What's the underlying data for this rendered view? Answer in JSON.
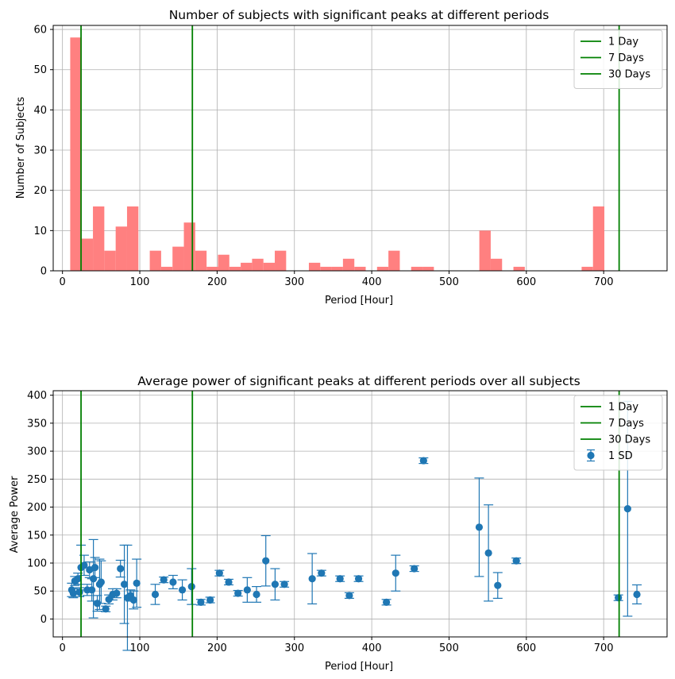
{
  "chart_data": [
    {
      "type": "bar",
      "title": "Number of subjects with significant peaks at different periods",
      "xlabel": "Period [Hour]",
      "ylabel": "Number of Subjects",
      "xlim": [
        -12,
        782
      ],
      "ylim": [
        0,
        61
      ],
      "xticks": [
        0,
        100,
        200,
        300,
        400,
        500,
        600,
        700
      ],
      "yticks": [
        0,
        10,
        20,
        30,
        40,
        50,
        60
      ],
      "grid": true,
      "legend_position": "top-right",
      "bar_color": "#ff8080",
      "bin_width": 14.7,
      "bin_start": 10,
      "values": [
        58,
        8,
        16,
        5,
        11,
        16,
        0,
        5,
        1,
        6,
        12,
        5,
        1,
        4,
        1,
        2,
        3,
        2,
        5,
        0,
        0,
        2,
        1,
        1,
        3,
        1,
        0,
        1,
        5,
        0,
        1,
        1,
        0,
        0,
        0,
        0,
        10,
        3,
        0,
        1,
        0,
        0,
        0,
        0,
        0,
        1,
        16
      ],
      "vlines": [
        {
          "x": 24,
          "label": "1 Day",
          "color": "#008000"
        },
        {
          "x": 168,
          "label": "7 Days",
          "color": "#008000"
        },
        {
          "x": 720,
          "label": "30 Days",
          "color": "#008000"
        }
      ]
    },
    {
      "type": "scatter",
      "title": "Average power of significant peaks at different periods over all subjects",
      "xlabel": "Period [Hour]",
      "ylabel": "Average Power",
      "xlim": [
        -12,
        782
      ],
      "ylim": [
        -32,
        408
      ],
      "xticks": [
        0,
        100,
        200,
        300,
        400,
        500,
        600,
        700
      ],
      "yticks": [
        0,
        50,
        100,
        150,
        200,
        250,
        300,
        350,
        400
      ],
      "grid": true,
      "legend_position": "top-right",
      "marker_color": "#1f77b4",
      "series": [
        {
          "name": "1 SD",
          "points": [
            [
              12,
              52,
              12
            ],
            [
              14,
              46,
              8
            ],
            [
              16,
              68,
              8
            ],
            [
              20,
              72,
              10
            ],
            [
              22,
              48,
              8
            ],
            [
              24,
              92,
              40
            ],
            [
              28,
              96,
              18
            ],
            [
              32,
              52,
              10
            ],
            [
              35,
              88,
              14
            ],
            [
              38,
              52,
              20
            ],
            [
              40,
              72,
              70
            ],
            [
              42,
              92,
              18
            ],
            [
              45,
              28,
              14
            ],
            [
              48,
              62,
              45
            ],
            [
              50,
              66,
              38
            ],
            [
              56,
              18,
              5
            ],
            [
              60,
              35,
              8
            ],
            [
              65,
              44,
              10
            ],
            [
              70,
              46,
              8
            ],
            [
              75,
              90,
              15
            ],
            [
              80,
              62,
              70
            ],
            [
              84,
              38,
              94
            ],
            [
              88,
              42,
              10
            ],
            [
              92,
              34,
              16
            ],
            [
              96,
              64,
              43
            ],
            [
              120,
              44,
              18
            ],
            [
              131,
              70,
              5
            ],
            [
              143,
              66,
              12
            ],
            [
              155,
              52,
              18
            ],
            [
              167,
              58,
              32
            ],
            [
              179,
              30,
              5
            ],
            [
              191,
              34,
              5
            ],
            [
              203,
              82,
              5
            ],
            [
              215,
              66,
              5
            ],
            [
              227,
              46,
              5
            ],
            [
              239,
              52,
              22
            ],
            [
              251,
              44,
              14
            ],
            [
              263,
              104,
              45
            ],
            [
              275,
              62,
              28
            ],
            [
              287,
              62,
              5
            ],
            [
              323,
              72,
              45
            ],
            [
              335,
              82,
              5
            ],
            [
              359,
              72,
              5
            ],
            [
              371,
              42,
              5
            ],
            [
              383,
              72,
              5
            ],
            [
              419,
              30,
              5
            ],
            [
              431,
              82,
              32
            ],
            [
              455,
              90,
              5
            ],
            [
              467,
              283,
              5
            ],
            [
              539,
              164,
              88
            ],
            [
              551,
              118,
              86
            ],
            [
              563,
              60,
              23
            ],
            [
              587,
              104,
              5
            ],
            [
              719,
              38,
              5
            ],
            [
              731,
              197,
              192
            ],
            [
              743,
              44,
              17
            ]
          ]
        }
      ],
      "vlines": [
        {
          "x": 24,
          "label": "1 Day",
          "color": "#008000"
        },
        {
          "x": 168,
          "label": "7 Days",
          "color": "#008000"
        },
        {
          "x": 720,
          "label": "30 Days",
          "color": "#008000"
        }
      ]
    }
  ]
}
